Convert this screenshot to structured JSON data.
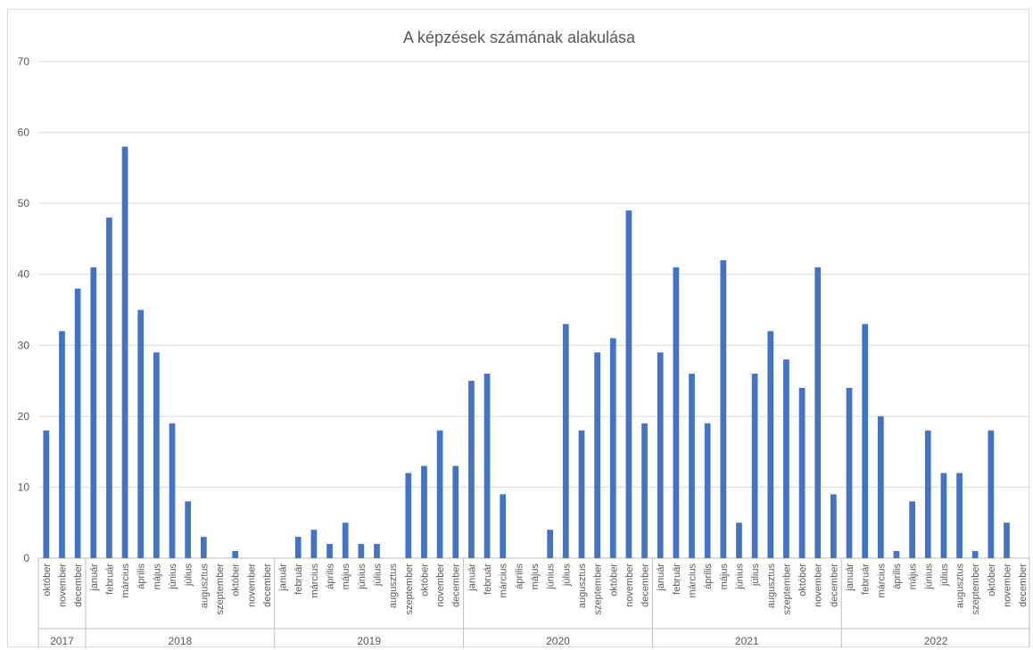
{
  "chart_data": {
    "type": "bar",
    "title": "A képzések számának alakulása",
    "xlabel": "",
    "ylabel": "",
    "ylim": [
      0,
      70
    ],
    "yticks": [
      0,
      10,
      20,
      30,
      40,
      50,
      60,
      70
    ],
    "grid": true,
    "legend": "none",
    "colors": {
      "bar": "#4472c4",
      "grid": "#d9d9d9",
      "text": "#595959"
    },
    "groups": [
      {
        "year": "2017",
        "months": [
          "október",
          "november",
          "december"
        ],
        "values": [
          18,
          32,
          38
        ]
      },
      {
        "year": "2018",
        "months": [
          "január",
          "február",
          "március",
          "április",
          "május",
          "június",
          "július",
          "augusztus",
          "szeptember",
          "október",
          "november",
          "december"
        ],
        "values": [
          41,
          48,
          58,
          35,
          29,
          19,
          8,
          3,
          0,
          1,
          0,
          0
        ]
      },
      {
        "year": "2019",
        "months": [
          "január",
          "február",
          "március",
          "április",
          "május",
          "június",
          "július",
          "augusztus",
          "szeptember",
          "október",
          "november",
          "december"
        ],
        "values": [
          0,
          3,
          4,
          2,
          5,
          2,
          2,
          0,
          12,
          13,
          18,
          13
        ]
      },
      {
        "year": "2020",
        "months": [
          "január",
          "február",
          "március",
          "április",
          "május",
          "június",
          "július",
          "augusztus",
          "szeptember",
          "október",
          "november",
          "december"
        ],
        "values": [
          25,
          26,
          9,
          0,
          0,
          4,
          33,
          18,
          29,
          31,
          49,
          19
        ]
      },
      {
        "year": "2021",
        "months": [
          "január",
          "február",
          "március",
          "április",
          "május",
          "június",
          "július",
          "augusztus",
          "szeptember",
          "október",
          "november",
          "december"
        ],
        "values": [
          29,
          41,
          26,
          19,
          42,
          5,
          26,
          32,
          28,
          24,
          41,
          9
        ]
      },
      {
        "year": "2022",
        "months": [
          "január",
          "február",
          "március",
          "április",
          "május",
          "június",
          "július",
          "augusztus",
          "szeptember",
          "október",
          "november",
          "december"
        ],
        "values": [
          24,
          33,
          20,
          1,
          8,
          18,
          12,
          12,
          1,
          18,
          5,
          0
        ]
      }
    ]
  }
}
